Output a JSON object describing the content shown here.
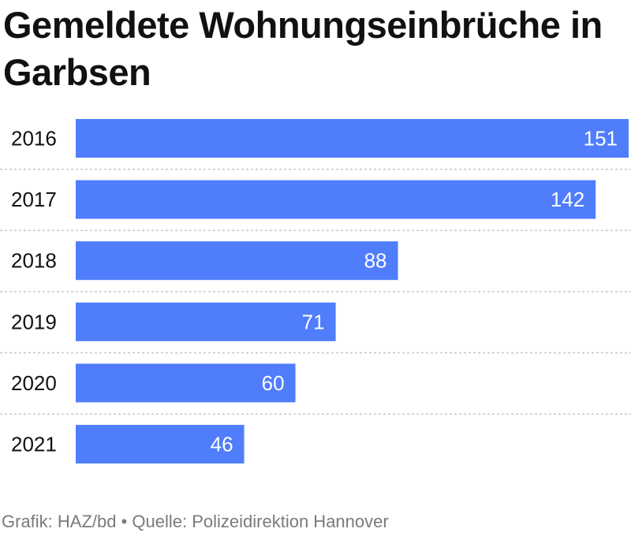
{
  "chart": {
    "title": "Gemeldete Wohnungseinbrüche in Garbsen",
    "source": "Grafik: HAZ/bd • Quelle: Polizeidirektion Hannover"
  },
  "chart_data": {
    "type": "bar",
    "orientation": "horizontal",
    "title": "Gemeldete Wohnungseinbrüche in Garbsen",
    "categories": [
      "2016",
      "2017",
      "2018",
      "2019",
      "2020",
      "2021"
    ],
    "values": [
      151,
      142,
      88,
      71,
      60,
      46
    ],
    "data_labels": [
      "151",
      "142",
      "88",
      "71",
      "60",
      "46"
    ],
    "xlim": [
      0,
      151
    ],
    "grid": false,
    "legend": "none",
    "bar_color": "#4f7dfb",
    "label_color": "#ffffff",
    "separator_color": "#c8c8c8"
  }
}
